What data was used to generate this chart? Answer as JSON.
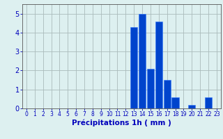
{
  "hours": [
    0,
    1,
    2,
    3,
    4,
    5,
    6,
    7,
    8,
    9,
    10,
    11,
    12,
    13,
    14,
    15,
    16,
    17,
    18,
    19,
    20,
    21,
    22,
    23
  ],
  "values": [
    0,
    0,
    0,
    0,
    0,
    0,
    0,
    0,
    0,
    0,
    0,
    0,
    0,
    4.3,
    5.0,
    2.1,
    4.6,
    1.5,
    0.6,
    0,
    0.2,
    0,
    0.6,
    0
  ],
  "bar_color": "#0044cc",
  "bar_edge_color": "#3377ff",
  "background_color": "#ddf0f0",
  "grid_color": "#aabbbb",
  "xlabel": "Précipitations 1h ( mm )",
  "ylim": [
    0,
    5.5
  ],
  "yticks": [
    0,
    1,
    2,
    3,
    4,
    5
  ],
  "xlabel_color": "#0000bb",
  "tick_color": "#0000bb",
  "axis_color": "#555555",
  "xtick_fontsize": 5.5,
  "ytick_fontsize": 7.0,
  "xlabel_fontsize": 7.5
}
